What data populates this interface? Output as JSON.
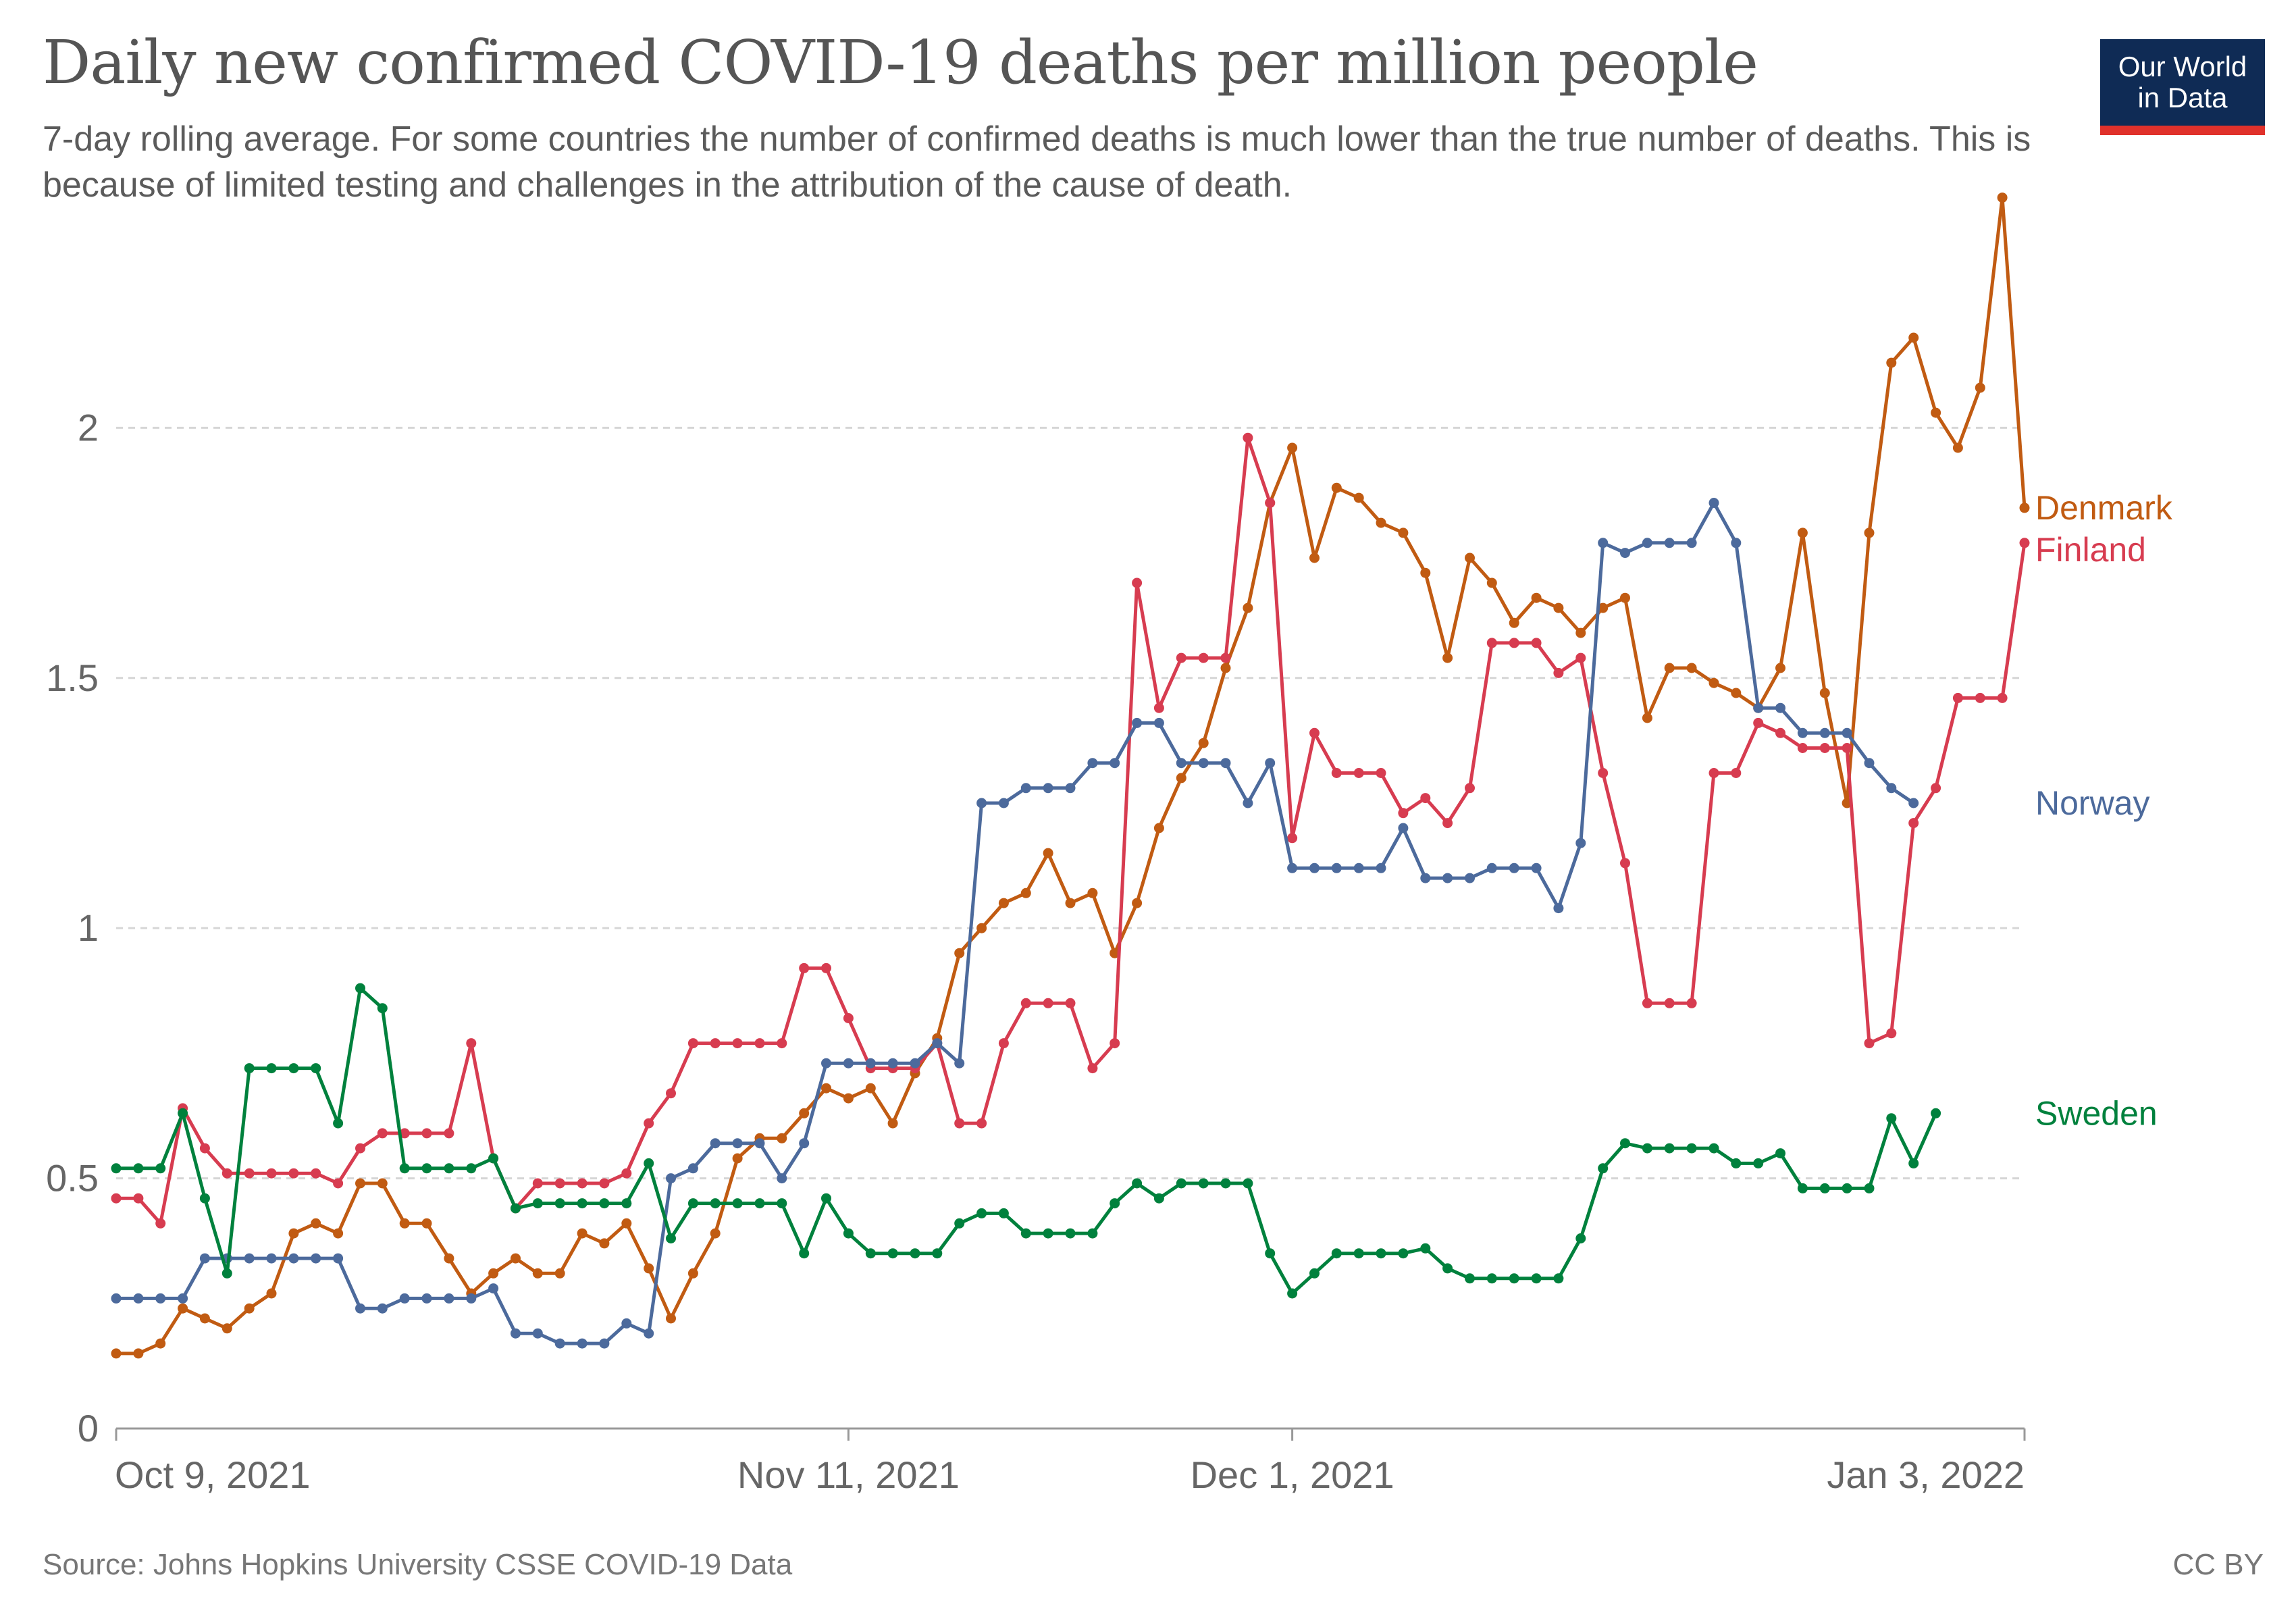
{
  "header": {
    "title": "Daily new confirmed COVID-19 deaths per million people",
    "subtitle": "7-day rolling average. For some countries the number of confirmed deaths is much lower than the true number of deaths. This is because of limited testing and challenges in the attribution of the cause of death.",
    "logo_line1": "Our World",
    "logo_line2": "in Data"
  },
  "footer": {
    "source": "Source: Johns Hopkins University CSSE COVID-19 Data",
    "license": "CC BY"
  },
  "colors": {
    "Denmark": "#c15b12",
    "Finland": "#d73c50",
    "Norway": "#4c6a9c",
    "Sweden": "#00813d",
    "logo_bg": "#0f2b55",
    "logo_bar": "#e0312b"
  },
  "chart_data": {
    "type": "line",
    "title": "Daily new confirmed COVID-19 deaths per million people",
    "xlabel": "",
    "ylabel": "",
    "x_start": "2021-10-09",
    "x_end": "2022-01-03",
    "x_ticks": [
      "Oct 9, 2021",
      "Nov 11, 2021",
      "Dec 1, 2021",
      "Jan 3, 2022"
    ],
    "x_tick_dates": [
      "2021-10-09",
      "2021-11-11",
      "2021-12-01",
      "2022-01-03"
    ],
    "y_ticks": [
      0,
      0.5,
      1,
      1.5,
      2
    ],
    "y_tick_labels": [
      "0",
      "0.5",
      "1",
      "1.5",
      "2"
    ],
    "ylim": [
      0,
      2.45
    ],
    "grid": true,
    "legend": "line-end labels, right",
    "series": [
      {
        "name": "Denmark",
        "values": [
          0.15,
          0.15,
          0.17,
          0.24,
          0.22,
          0.2,
          0.24,
          0.27,
          0.39,
          0.41,
          0.39,
          0.49,
          0.49,
          0.41,
          0.41,
          0.34,
          0.27,
          0.31,
          0.34,
          0.31,
          0.31,
          0.39,
          0.37,
          0.41,
          0.32,
          0.22,
          0.31,
          0.39,
          0.54,
          0.58,
          0.58,
          0.63,
          0.68,
          0.66,
          0.68,
          0.61,
          0.71,
          0.78,
          0.95,
          1.0,
          1.05,
          1.07,
          1.15,
          1.05,
          1.07,
          0.95,
          1.05,
          1.2,
          1.3,
          1.37,
          1.52,
          1.64,
          1.85,
          1.96,
          1.74,
          1.88,
          1.86,
          1.81,
          1.79,
          1.71,
          1.54,
          1.74,
          1.69,
          1.61,
          1.66,
          1.64,
          1.59,
          1.64,
          1.66,
          1.42,
          1.52,
          1.52,
          1.49,
          1.47,
          1.44,
          1.52,
          1.79,
          1.47,
          1.25,
          1.79,
          2.13,
          2.18,
          2.03,
          1.96,
          2.08,
          2.46,
          1.84
        ]
      },
      {
        "name": "Finland",
        "values": [
          0.46,
          0.46,
          0.41,
          0.64,
          0.56,
          0.51,
          0.51,
          0.51,
          0.51,
          0.51,
          0.49,
          0.56,
          0.59,
          0.59,
          0.59,
          0.59,
          0.77,
          0.54,
          0.44,
          0.49,
          0.49,
          0.49,
          0.49,
          0.51,
          0.61,
          0.67,
          0.77,
          0.77,
          0.77,
          0.77,
          0.77,
          0.92,
          0.92,
          0.82,
          0.72,
          0.72,
          0.72,
          0.77,
          0.61,
          0.61,
          0.77,
          0.85,
          0.85,
          0.85,
          0.72,
          0.77,
          1.69,
          1.44,
          1.54,
          1.54,
          1.54,
          1.98,
          1.85,
          1.18,
          1.39,
          1.31,
          1.31,
          1.31,
          1.23,
          1.26,
          1.21,
          1.28,
          1.57,
          1.57,
          1.57,
          1.51,
          1.54,
          1.31,
          1.13,
          0.85,
          0.85,
          0.85,
          1.31,
          1.31,
          1.41,
          1.39,
          1.36,
          1.36,
          1.36,
          0.77,
          0.79,
          1.21,
          1.28,
          1.46,
          1.46,
          1.46,
          1.77
        ]
      },
      {
        "name": "Norway",
        "values": [
          0.26,
          0.26,
          0.26,
          0.26,
          0.34,
          0.34,
          0.34,
          0.34,
          0.34,
          0.34,
          0.34,
          0.24,
          0.24,
          0.26,
          0.26,
          0.26,
          0.26,
          0.28,
          0.19,
          0.19,
          0.17,
          0.17,
          0.17,
          0.21,
          0.19,
          0.5,
          0.52,
          0.57,
          0.57,
          0.57,
          0.5,
          0.57,
          0.73,
          0.73,
          0.73,
          0.73,
          0.73,
          0.77,
          0.73,
          1.25,
          1.25,
          1.28,
          1.28,
          1.28,
          1.33,
          1.33,
          1.41,
          1.41,
          1.33,
          1.33,
          1.33,
          1.25,
          1.33,
          1.12,
          1.12,
          1.12,
          1.12,
          1.12,
          1.2,
          1.1,
          1.1,
          1.1,
          1.12,
          1.12,
          1.12,
          1.04,
          1.17,
          1.77,
          1.75,
          1.77,
          1.77,
          1.77,
          1.85,
          1.77,
          1.44,
          1.44,
          1.39,
          1.39,
          1.39,
          1.33,
          1.28,
          1.25
        ]
      },
      {
        "name": "Sweden",
        "values": [
          0.52,
          0.52,
          0.52,
          0.63,
          0.46,
          0.31,
          0.72,
          0.72,
          0.72,
          0.72,
          0.61,
          0.88,
          0.84,
          0.52,
          0.52,
          0.52,
          0.52,
          0.54,
          0.44,
          0.45,
          0.45,
          0.45,
          0.45,
          0.45,
          0.53,
          0.38,
          0.45,
          0.45,
          0.45,
          0.45,
          0.45,
          0.35,
          0.46,
          0.39,
          0.35,
          0.35,
          0.35,
          0.35,
          0.41,
          0.43,
          0.43,
          0.39,
          0.39,
          0.39,
          0.39,
          0.45,
          0.49,
          0.46,
          0.49,
          0.49,
          0.49,
          0.49,
          0.35,
          0.27,
          0.31,
          0.35,
          0.35,
          0.35,
          0.35,
          0.36,
          0.32,
          0.3,
          0.3,
          0.3,
          0.3,
          0.3,
          0.38,
          0.52,
          0.57,
          0.56,
          0.56,
          0.56,
          0.56,
          0.53,
          0.53,
          0.55,
          0.48,
          0.48,
          0.48,
          0.48,
          0.62,
          0.53,
          0.63
        ]
      }
    ]
  }
}
